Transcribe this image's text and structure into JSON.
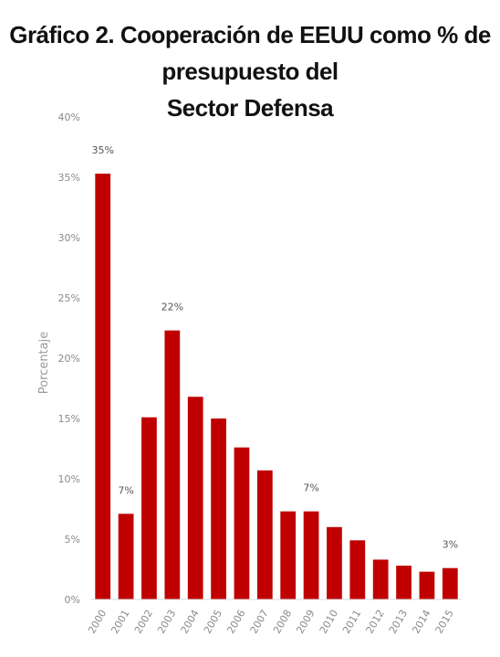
{
  "title_line1": "Gráfico 2. Cooperación de EEUU como % de presupuesto del",
  "title_line2": "Sector Defensa",
  "chart_data": {
    "type": "bar",
    "title": "Gráfico 2. Cooperación de EEUU como % de presupuesto del Sector Defensa",
    "xlabel": "",
    "ylabel": "Porcentaje",
    "ylim": [
      0,
      40
    ],
    "yticks": [
      0,
      5,
      10,
      15,
      20,
      25,
      30,
      35,
      40
    ],
    "ytick_labels": [
      "0%",
      "5%",
      "10%",
      "15%",
      "20%",
      "25%",
      "30%",
      "35%",
      "40%"
    ],
    "categories": [
      "2000",
      "2001",
      "2002",
      "2003",
      "2004",
      "2005",
      "2006",
      "2007",
      "2008",
      "2009",
      "2010",
      "2011",
      "2012",
      "2013",
      "2014",
      "2015"
    ],
    "values": [
      35.3,
      7.1,
      15.1,
      22.3,
      16.8,
      15.0,
      12.6,
      10.7,
      7.3,
      7.3,
      6.0,
      4.9,
      3.3,
      2.8,
      2.3,
      2.6
    ],
    "data_labels": [
      {
        "index": 0,
        "text": "35%"
      },
      {
        "index": 1,
        "text": "7%"
      },
      {
        "index": 3,
        "text": "22%"
      },
      {
        "index": 9,
        "text": "7%"
      },
      {
        "index": 15,
        "text": "3%"
      }
    ],
    "bar_color": "#c00000",
    "grid": false
  }
}
